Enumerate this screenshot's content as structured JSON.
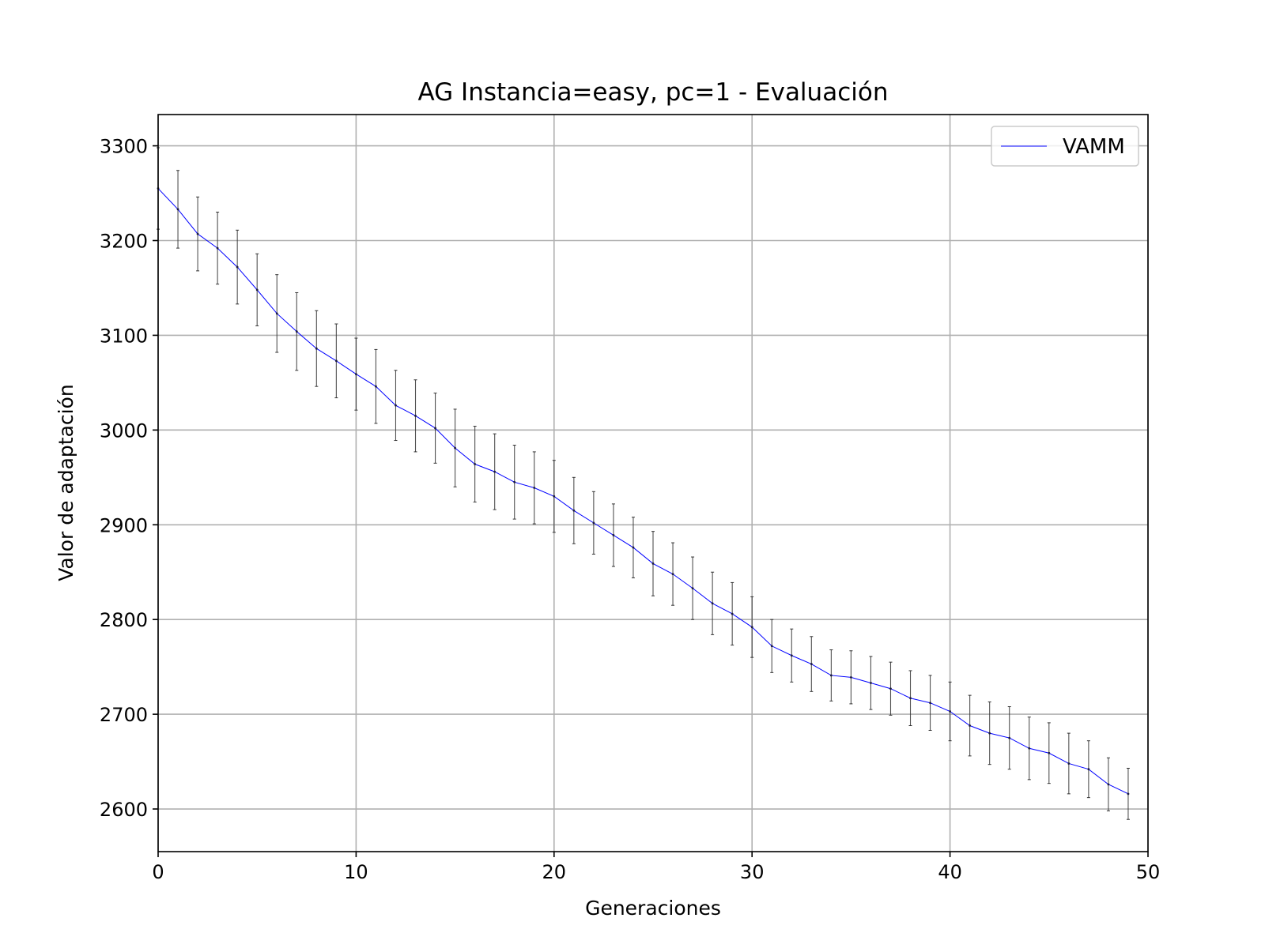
{
  "chart_data": {
    "type": "line",
    "title": "AG Instancia=easy, pc=1 - Evaluación",
    "xlabel": "Generaciones",
    "ylabel": "Valor de adaptación",
    "xlim": [
      0,
      50
    ],
    "ylim": [
      2555,
      3333
    ],
    "xticks": [
      0,
      10,
      20,
      30,
      40,
      50
    ],
    "yticks": [
      2600,
      2700,
      2800,
      2900,
      3000,
      3100,
      3200,
      3300
    ],
    "grid": true,
    "legend_position": "top-right",
    "series": [
      {
        "name": "VAMM",
        "color": "#0000ff",
        "errorbar_color": "#333333",
        "x": [
          0,
          1,
          2,
          3,
          4,
          5,
          6,
          7,
          8,
          9,
          10,
          11,
          12,
          13,
          14,
          15,
          16,
          17,
          18,
          19,
          20,
          21,
          22,
          23,
          24,
          25,
          26,
          27,
          28,
          29,
          30,
          31,
          32,
          33,
          34,
          35,
          36,
          37,
          38,
          39,
          40,
          41,
          42,
          43,
          44,
          45,
          46,
          47,
          48,
          49
        ],
        "y": [
          3255,
          3233,
          3207,
          3192,
          3172,
          3148,
          3123,
          3104,
          3086,
          3073,
          3059,
          3046,
          3026,
          3015,
          3002,
          2981,
          2964,
          2956,
          2945,
          2939,
          2930,
          2915,
          2902,
          2889,
          2876,
          2859,
          2848,
          2833,
          2817,
          2806,
          2792,
          2772,
          2762,
          2753,
          2741,
          2739,
          2733,
          2727,
          2717,
          2712,
          2703,
          2688,
          2680,
          2675,
          2664,
          2659,
          2648,
          2642,
          2626,
          2616
        ],
        "yerr": [
          43,
          41,
          39,
          38,
          39,
          38,
          41,
          41,
          40,
          39,
          38,
          39,
          37,
          38,
          37,
          41,
          40,
          40,
          39,
          38,
          38,
          35,
          33,
          33,
          32,
          34,
          33,
          33,
          33,
          33,
          32,
          28,
          28,
          29,
          27,
          28,
          28,
          28,
          29,
          29,
          31,
          32,
          33,
          33,
          33,
          32,
          32,
          30,
          28,
          27
        ]
      }
    ]
  }
}
